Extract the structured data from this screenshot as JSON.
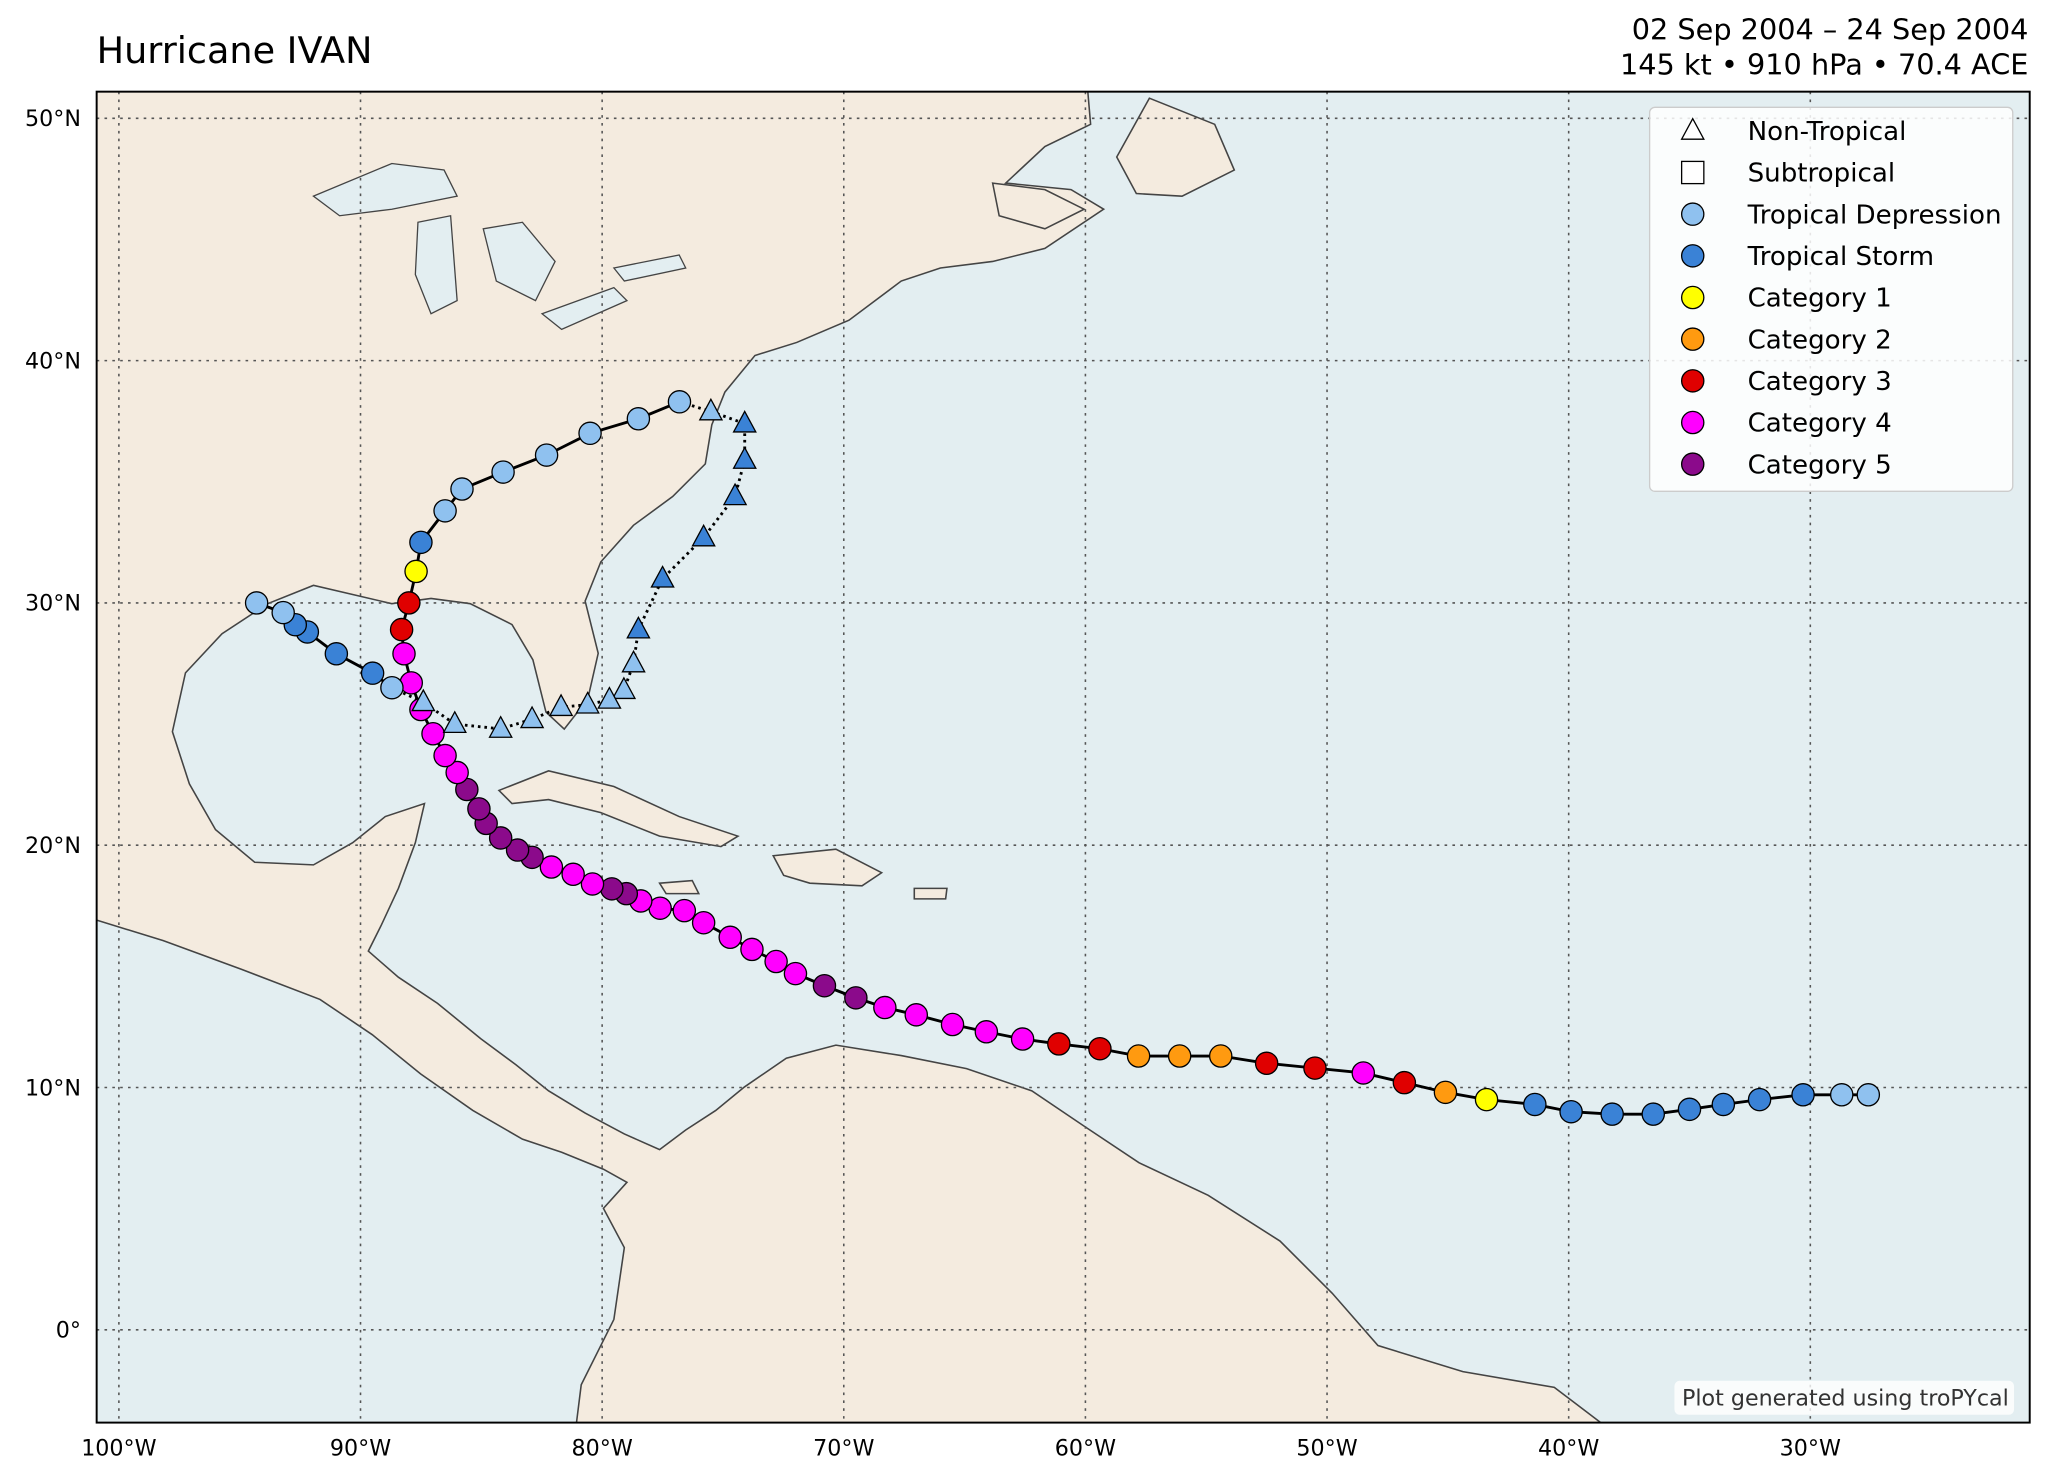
{
  "chart_data": {
    "type": "track",
    "title": "Hurricane IVAN",
    "subtitle": [
      "02 Sep 2004 – 24 Sep 2004",
      "145 kt • 910 hPa • 70.4 ACE"
    ],
    "credit": "Plot generated using troPYcal",
    "xlim": [
      -100.92,
      -20.92
    ],
    "ylim": [
      -3.83,
      51.1
    ],
    "xticks": [
      {
        "value": -100,
        "label": "100°W"
      },
      {
        "value": -90,
        "label": "90°W"
      },
      {
        "value": -80,
        "label": "80°W"
      },
      {
        "value": -70,
        "label": "70°W"
      },
      {
        "value": -60,
        "label": "60°W"
      },
      {
        "value": -50,
        "label": "50°W"
      },
      {
        "value": -40,
        "label": "40°W"
      },
      {
        "value": -30,
        "label": "30°W"
      }
    ],
    "yticks": [
      {
        "value": 0,
        "label": "0°"
      },
      {
        "value": 10,
        "label": "10°N"
      },
      {
        "value": 20,
        "label": "20°N"
      },
      {
        "value": 30,
        "label": "30°N"
      },
      {
        "value": 40,
        "label": "40°N"
      },
      {
        "value": 50,
        "label": "50°N"
      }
    ],
    "grid": true,
    "legend_position": "upper right",
    "legend": [
      {
        "name": "Non-Tropical",
        "marker": "triangle",
        "color": "#ffffff"
      },
      {
        "name": "Subtropical",
        "marker": "square",
        "color": "#ffffff"
      },
      {
        "name": "Tropical Depression",
        "marker": "circle",
        "color": "#8fc1ef"
      },
      {
        "name": "Tropical Storm",
        "marker": "circle",
        "color": "#3a82d6"
      },
      {
        "name": "Category 1",
        "marker": "circle",
        "color": "#ffff00"
      },
      {
        "name": "Category 2",
        "marker": "circle",
        "color": "#ff9a10"
      },
      {
        "name": "Category 3",
        "marker": "circle",
        "color": "#e00000"
      },
      {
        "name": "Category 4",
        "marker": "circle",
        "color": "#ff00ff"
      },
      {
        "name": "Category 5",
        "marker": "circle",
        "color": "#8b0a8b"
      }
    ],
    "series": [
      {
        "marker": "circle",
        "line": "solid",
        "x": [
          -27.6,
          -28.7,
          -30.3,
          -32.1,
          -33.6,
          -35.0,
          -36.5,
          -38.2,
          -39.9,
          -41.4,
          -43.4,
          -45.1,
          -46.8,
          -48.5,
          -50.5,
          -52.5,
          -54.4,
          -56.1,
          -57.8,
          -59.4,
          -61.1,
          -62.6,
          -64.1,
          -65.5,
          -67.0,
          -68.3,
          -69.5,
          -70.8,
          -72.0,
          -72.8,
          -73.8,
          -74.7,
          -75.8,
          -76.6,
          -77.6,
          -78.4,
          -79.0,
          -79.6,
          -80.4,
          -81.2,
          -82.1,
          -82.9,
          -83.5,
          -84.2,
          -84.8,
          -85.1,
          -85.6,
          -86.0,
          -86.5,
          -87.0,
          -87.5,
          -87.9,
          -88.2,
          -88.3,
          -88.0,
          -87.7,
          -87.5,
          -86.5,
          -85.8,
          -84.1,
          -82.3,
          -80.5,
          -78.5,
          -76.8
        ],
        "y": [
          9.7,
          9.7,
          9.7,
          9.5,
          9.3,
          9.1,
          8.9,
          8.9,
          9.0,
          9.3,
          9.5,
          9.8,
          10.2,
          10.6,
          10.8,
          11.0,
          11.3,
          11.3,
          11.3,
          11.6,
          11.8,
          12.0,
          12.3,
          12.6,
          13.0,
          13.3,
          13.7,
          14.2,
          14.7,
          15.2,
          15.7,
          16.2,
          16.8,
          17.3,
          17.4,
          17.7,
          18.0,
          18.2,
          18.4,
          18.8,
          19.1,
          19.5,
          19.8,
          20.3,
          20.9,
          21.5,
          22.3,
          23.0,
          23.7,
          24.6,
          25.6,
          26.7,
          27.9,
          28.9,
          30.0,
          31.3,
          32.5,
          33.8,
          34.7,
          35.4,
          36.1,
          37.0,
          37.6,
          38.3
        ],
        "intensity": [
          "Tropical Depression",
          "Tropical Depression",
          "Tropical Storm",
          "Tropical Storm",
          "Tropical Storm",
          "Tropical Storm",
          "Tropical Storm",
          "Tropical Storm",
          "Tropical Storm",
          "Tropical Storm",
          "Category 1",
          "Category 2",
          "Category 3",
          "Category 4",
          "Category 3",
          "Category 3",
          "Category 2",
          "Category 2",
          "Category 2",
          "Category 3",
          "Category 3",
          "Category 4",
          "Category 4",
          "Category 4",
          "Category 4",
          "Category 4",
          "Category 5",
          "Category 5",
          "Category 4",
          "Category 4",
          "Category 4",
          "Category 4",
          "Category 4",
          "Category 4",
          "Category 4",
          "Category 4",
          "Category 5",
          "Category 5",
          "Category 4",
          "Category 4",
          "Category 4",
          "Category 5",
          "Category 5",
          "Category 5",
          "Category 5",
          "Category 5",
          "Category 5",
          "Category 4",
          "Category 4",
          "Category 4",
          "Category 4",
          "Category 4",
          "Category 4",
          "Category 3",
          "Category 3",
          "Category 1",
          "Tropical Storm",
          "Tropical Depression",
          "Tropical Depression",
          "Tropical Depression",
          "Tropical Depression",
          "Tropical Depression",
          "Tropical Depression",
          "Tropical Depression"
        ]
      },
      {
        "marker": "triangle",
        "line": "dotted",
        "x": [
          -75.5,
          -74.1,
          -74.1,
          -74.5,
          -75.8,
          -77.5,
          -78.5,
          -78.7,
          -79.1,
          -79.7,
          -80.6,
          -81.7,
          -82.9,
          -84.2,
          -86.1,
          -87.4
        ],
        "y": [
          37.9,
          37.4,
          35.9,
          34.4,
          32.7,
          31.0,
          28.9,
          27.5,
          26.4,
          26.0,
          25.8,
          25.7,
          25.2,
          24.8,
          25.0,
          25.9
        ],
        "intensity": [
          "Tropical Depression",
          "Tropical Storm",
          "Tropical Storm",
          "Tropical Storm",
          "Tropical Storm",
          "Tropical Storm",
          "Tropical Storm",
          "Tropical Depression",
          "Tropical Depression",
          "Tropical Depression",
          "Tropical Depression",
          "Tropical Depression",
          "Tropical Depression",
          "Tropical Depression",
          "Tropical Depression",
          "Tropical Depression"
        ]
      },
      {
        "marker": "circle",
        "line": "solid",
        "x": [
          -88.7,
          -89.5,
          -91.0,
          -92.2,
          -92.7,
          -93.2,
          -94.3
        ],
        "y": [
          26.5,
          27.1,
          27.9,
          28.8,
          29.1,
          29.6,
          30.0
        ],
        "intensity": [
          "Tropical Depression",
          "Tropical Storm",
          "Tropical Storm",
          "Tropical Storm",
          "Tropical Storm",
          "Tropical Depression",
          "Tropical Depression"
        ]
      }
    ]
  }
}
